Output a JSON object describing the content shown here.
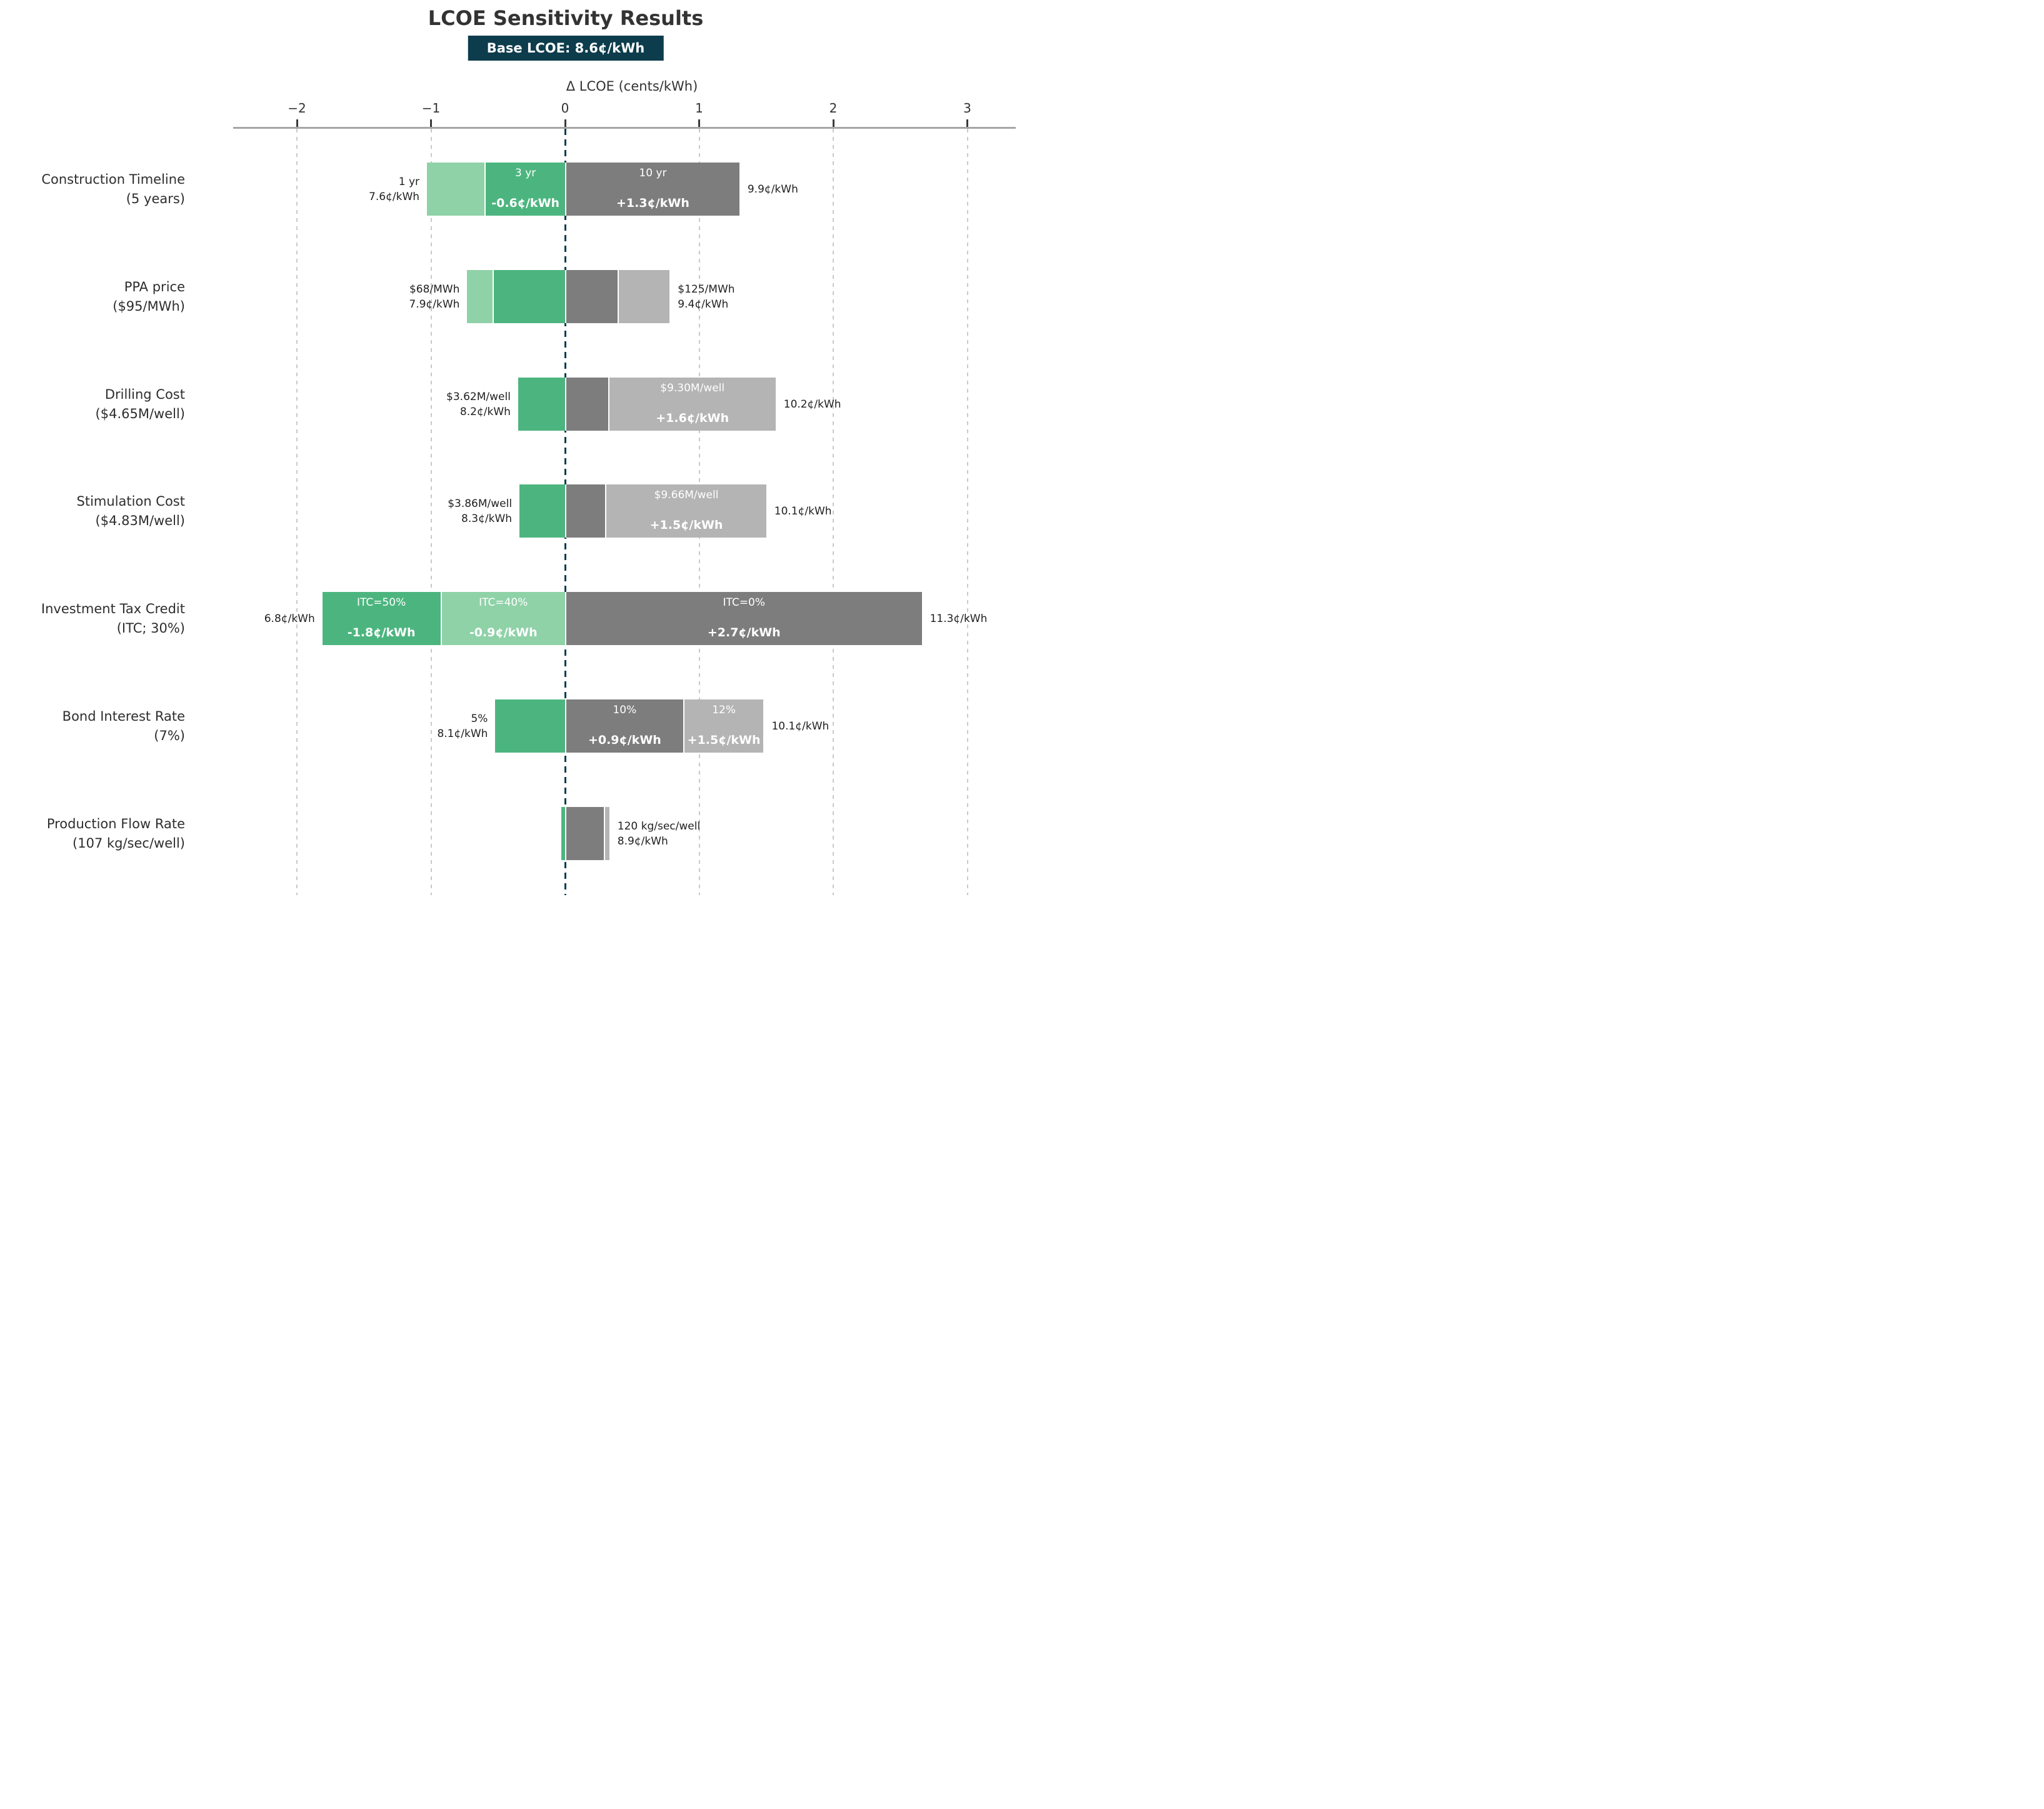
{
  "title": "LCOE Sensitivity Results",
  "badge": "Base LCOE: 8.6¢/kWh",
  "colors": {
    "green_dark": "#4cb57f",
    "green_light": "#8fd2a8",
    "gray_dark": "#7d7d7d",
    "gray_light": "#b4b4b4",
    "zero_line": "#0d3c4c",
    "badge_bg": "#0d3c4c",
    "badge_text": "#ffffff",
    "grid": "#c9c9c9",
    "axis_line": "#a6a6a6",
    "text_dark": "#2e2e2e",
    "bar_label": "#ffffff"
  },
  "chart_data": {
    "type": "bar",
    "subtype": "tornado-sensitivity",
    "title": "LCOE Sensitivity Results",
    "base_label": "Base LCOE: 8.6¢/kWh",
    "base_value_cents_per_kwh": 8.6,
    "xlabel": "Δ LCOE (cents/kWh)",
    "xlim": [
      -2.5,
      3.4
    ],
    "axis": {
      "ticks": [
        {
          "v": -2,
          "label": "−2"
        },
        {
          "v": -1,
          "label": "−1"
        },
        {
          "v": 0,
          "label": "0"
        },
        {
          "v": 1,
          "label": "1"
        },
        {
          "v": 2,
          "label": "2"
        },
        {
          "v": 3,
          "label": "3"
        }
      ]
    },
    "rows": [
      {
        "label_lines": [
          "Construction Timeline",
          "(5 years)"
        ],
        "left_annotation": [
          "1 yr",
          "7.6¢/kWh"
        ],
        "right_annotation": [
          "9.9¢/kWh"
        ],
        "segments": [
          {
            "from": -1.03,
            "to": -0.6,
            "color": "green_light"
          },
          {
            "from": -0.6,
            "to": 0,
            "color": "green_dark",
            "scenario": "3 yr",
            "delta": "-0.6¢/kWh"
          },
          {
            "from": 0,
            "to": 1.3,
            "color": "gray_dark",
            "scenario": "10 yr",
            "delta": "+1.3¢/kWh"
          }
        ]
      },
      {
        "label_lines": [
          "PPA price",
          "($95/MWh)"
        ],
        "left_annotation": [
          "$68/MWh",
          "7.9¢/kWh"
        ],
        "right_annotation": [
          "$125/MWh",
          "9.4¢/kWh"
        ],
        "segments": [
          {
            "from": -0.73,
            "to": -0.54,
            "color": "green_light"
          },
          {
            "from": -0.54,
            "to": 0,
            "color": "green_dark"
          },
          {
            "from": 0,
            "to": 0.39,
            "color": "gray_dark"
          },
          {
            "from": 0.39,
            "to": 0.78,
            "color": "gray_light"
          }
        ]
      },
      {
        "label_lines": [
          "Drilling Cost",
          "($4.65M/well)"
        ],
        "left_annotation": [
          "$3.62M/well",
          "8.2¢/kWh"
        ],
        "right_annotation": [
          "10.2¢/kWh"
        ],
        "segments": [
          {
            "from": -0.35,
            "to": 0,
            "color": "green_dark"
          },
          {
            "from": 0,
            "to": 0.32,
            "color": "gray_dark"
          },
          {
            "from": 0.32,
            "to": 1.57,
            "color": "gray_light",
            "scenario": "$9.30M/well",
            "delta": "+1.6¢/kWh"
          }
        ]
      },
      {
        "label_lines": [
          "Stimulation Cost",
          "($4.83M/well)"
        ],
        "left_annotation": [
          "$3.86M/well",
          "8.3¢/kWh"
        ],
        "right_annotation": [
          "10.1¢/kWh"
        ],
        "segments": [
          {
            "from": -0.34,
            "to": 0,
            "color": "green_dark"
          },
          {
            "from": 0,
            "to": 0.3,
            "color": "gray_dark"
          },
          {
            "from": 0.3,
            "to": 1.5,
            "color": "gray_light",
            "scenario": "$9.66M/well",
            "delta": "+1.5¢/kWh"
          }
        ]
      },
      {
        "label_lines": [
          "Investment Tax Credit",
          "(ITC; 30%)"
        ],
        "left_annotation": [
          "6.8¢/kWh"
        ],
        "right_annotation": [
          "11.3¢/kWh"
        ],
        "segments": [
          {
            "from": -1.81,
            "to": -0.93,
            "color": "green_dark",
            "scenario": "ITC=50%",
            "delta": "-1.8¢/kWh"
          },
          {
            "from": -0.93,
            "to": 0,
            "color": "green_light",
            "scenario": "ITC=40%",
            "delta": "-0.9¢/kWh"
          },
          {
            "from": 0,
            "to": 2.66,
            "color": "gray_dark",
            "scenario": "ITC=0%",
            "delta": "+2.7¢/kWh"
          }
        ]
      },
      {
        "label_lines": [
          "Bond Interest Rate",
          "(7%)"
        ],
        "left_annotation": [
          "5%",
          "8.1¢/kWh"
        ],
        "right_annotation": [
          "10.1¢/kWh"
        ],
        "segments": [
          {
            "from": -0.52,
            "to": 0,
            "color": "green_dark"
          },
          {
            "from": 0,
            "to": 0.88,
            "color": "gray_dark",
            "scenario": "10%",
            "delta": "+0.9¢/kWh"
          },
          {
            "from": 0.88,
            "to": 1.48,
            "color": "gray_light",
            "scenario": "12%",
            "delta": "+1.5¢/kWh"
          }
        ]
      },
      {
        "label_lines": [
          "Production Flow Rate",
          "(107 kg/sec/well)"
        ],
        "left_annotation": [],
        "right_annotation": [
          "120 kg/sec/well",
          "8.9¢/kWh"
        ],
        "segments": [
          {
            "from": -0.03,
            "to": 0,
            "color": "green_dark"
          },
          {
            "from": 0,
            "to": 0.29,
            "color": "gray_dark"
          },
          {
            "from": 0.29,
            "to": 0.33,
            "color": "gray_light"
          }
        ]
      }
    ]
  }
}
